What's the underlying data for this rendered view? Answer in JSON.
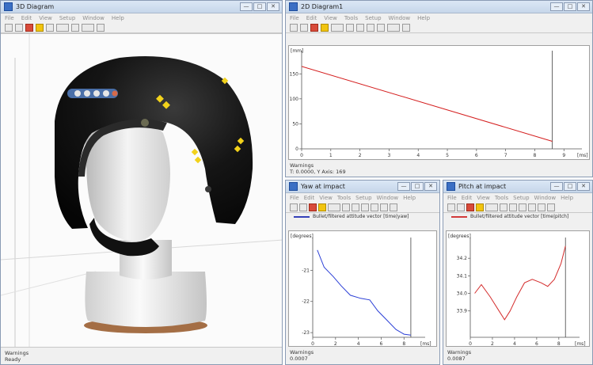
{
  "windows": {
    "diagram3d": {
      "title": "3D Diagram",
      "menu": [
        "File",
        "Edit",
        "View",
        "Setup",
        "Window",
        "Help"
      ],
      "status": [
        "Warnings",
        "Ready"
      ]
    },
    "diagram2d": {
      "title": "2D Diagram1",
      "menu": [
        "File",
        "Edit",
        "View",
        "Tools",
        "Setup",
        "Window",
        "Help"
      ],
      "status": [
        "Warnings",
        "T: 0.0000, Y Axis: 169"
      ]
    },
    "yaw": {
      "title": "Yaw at impact",
      "menu": [
        "File",
        "Edit",
        "View",
        "Tools",
        "Setup",
        "Window",
        "Help"
      ],
      "legend": "Bullet/filtered attitude vector [time|yaw]",
      "legend_color": "#3340b8",
      "status": [
        "Warnings",
        "0.0007"
      ]
    },
    "pitch": {
      "title": "Pitch at impact",
      "menu": [
        "File",
        "Edit",
        "View",
        "Tools",
        "Setup",
        "Window",
        "Help"
      ],
      "legend": "Bullet/filtered attitude vector [time|pitch]",
      "legend_color": "#d23a3a",
      "status": [
        "Warnings",
        "0.0087"
      ]
    }
  },
  "window_controls": [
    "—",
    "□",
    "✕"
  ],
  "scene_colors": {
    "helmet": "#141414",
    "head": "#e6e6e6",
    "base_wood": "#b07850",
    "marker": "#f2d21b"
  },
  "chart_data": [
    {
      "type": "line",
      "ylabel": "[mm]",
      "xlabel": "[ms]",
      "xlim": [
        0,
        9.4
      ],
      "ylim": [
        0,
        190
      ],
      "xticks": [
        "0",
        "1",
        "2",
        "3",
        "4",
        "5",
        "6",
        "7",
        "8",
        "9"
      ],
      "yticks": [
        "0",
        "50",
        "100",
        "150"
      ],
      "series": [
        {
          "color": "#d41c1c",
          "x": [
            0,
            8.6
          ],
          "y": [
            165,
            15
          ]
        }
      ]
    },
    {
      "type": "line",
      "ylabel": "[degrees]",
      "xlabel": "[ms]",
      "xlim": [
        0,
        9.3
      ],
      "ylim": [
        -23.15,
        -20.05
      ],
      "xticks": [
        "0",
        "2",
        "4",
        "6",
        "8"
      ],
      "yticks": [
        "-21",
        "-22",
        "-23"
      ],
      "yvals": [
        -21,
        -22,
        -23
      ],
      "series": [
        {
          "color": "#2b3fd6",
          "x": [
            0.4,
            1,
            1.8,
            2.5,
            3.3,
            4.2,
            5,
            5.7,
            6.5,
            7.3,
            8,
            8.6
          ],
          "y": [
            -20.35,
            -20.9,
            -21.2,
            -21.5,
            -21.8,
            -21.9,
            -21.95,
            -22.3,
            -22.6,
            -22.9,
            -23.05,
            -23.08
          ]
        }
      ]
    },
    {
      "type": "line",
      "ylabel": "[degrees]",
      "xlabel": "[ms]",
      "xlim": [
        0,
        9.3
      ],
      "ylim": [
        33.75,
        34.3
      ],
      "xticks": [
        "0",
        "2",
        "4",
        "6",
        "8"
      ],
      "yticks": [
        "34.2",
        "34.1",
        "34.0",
        "33.9"
      ],
      "yvals": [
        34.2,
        34.1,
        34.0,
        33.9
      ],
      "series": [
        {
          "color": "#d42d2d",
          "x": [
            0.4,
            1,
            1.8,
            2.6,
            3.1,
            3.6,
            4.2,
            4.9,
            5.6,
            6.4,
            7,
            7.6,
            8.2,
            8.6
          ],
          "y": [
            34.0,
            34.05,
            33.98,
            33.9,
            33.85,
            33.9,
            33.98,
            34.06,
            34.08,
            34.06,
            34.04,
            34.08,
            34.17,
            34.27
          ]
        }
      ]
    }
  ]
}
